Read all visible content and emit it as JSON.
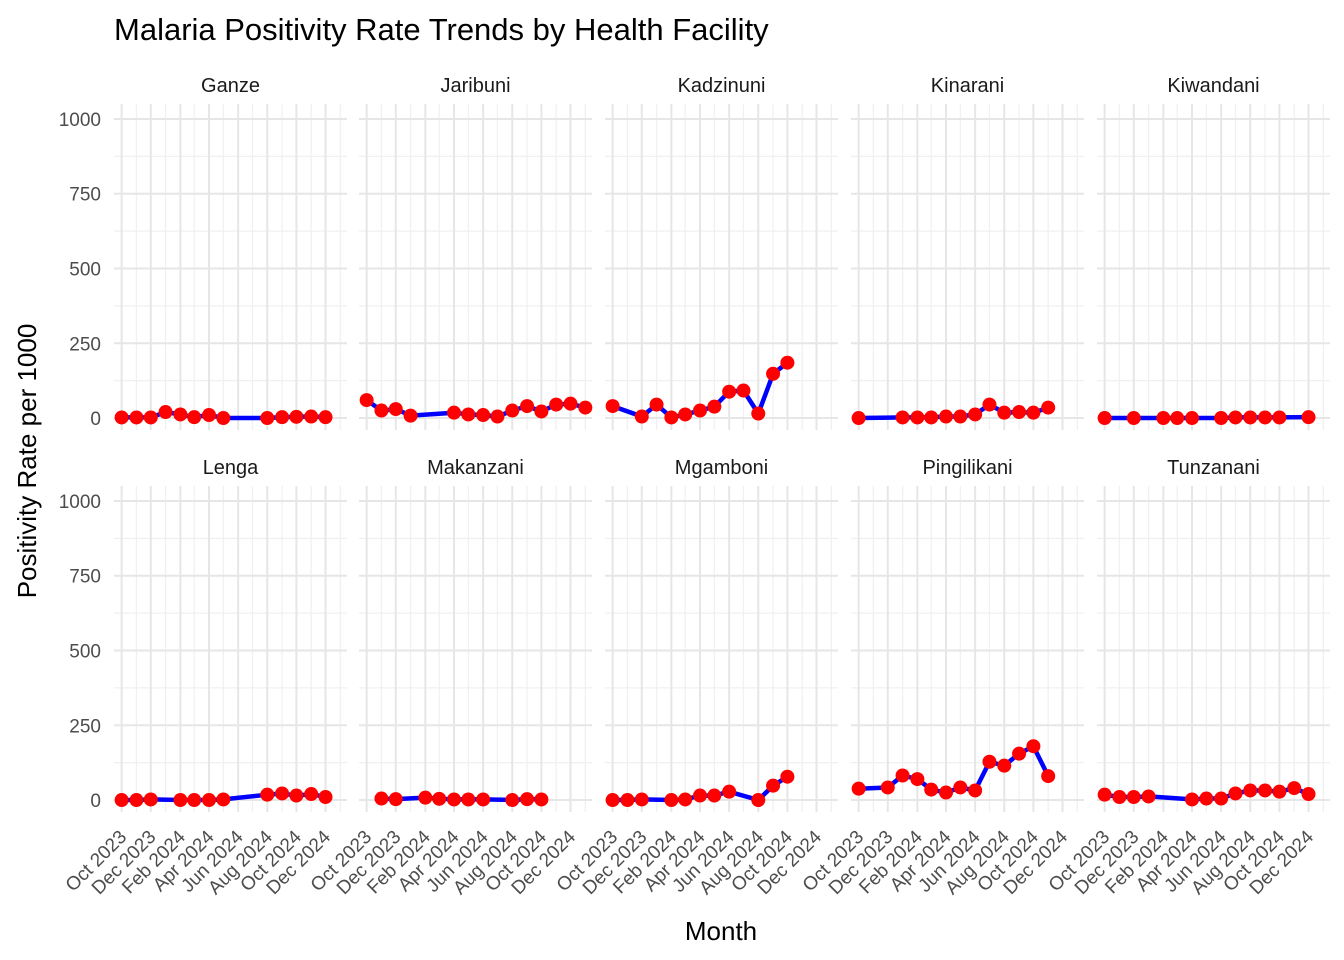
{
  "chart_data": {
    "type": "line",
    "title": "Malaria Positivity Rate Trends by Health Facility",
    "xlabel": "Month",
    "ylabel": "Positivity Rate per 1000",
    "ylim": [
      -40,
      1050
    ],
    "y_ticks": [
      0,
      250,
      500,
      750,
      1000
    ],
    "y_tick_labels": [
      "0",
      "250",
      "500",
      "750",
      "1000"
    ],
    "x_range": [
      "2023-09-15",
      "2025-01-15"
    ],
    "x_ticks": [
      "2023-10-01",
      "2023-12-01",
      "2024-02-01",
      "2024-04-01",
      "2024-06-01",
      "2024-08-01",
      "2024-10-01",
      "2024-12-01"
    ],
    "x_tick_labels": [
      "Oct 2023",
      "Dec 2023",
      "Feb 2024",
      "Apr 2024",
      "Jun 2024",
      "Aug 2024",
      "Oct 2024",
      "Dec 2024"
    ],
    "grid": true,
    "facet_layout": "2 rows x 5 columns",
    "line_color": "#0000FF",
    "point_color": "#FF0000",
    "panels": [
      {
        "name": "Ganze",
        "points": [
          [
            "2023-10",
            2
          ],
          [
            "2023-11",
            2
          ],
          [
            "2023-12",
            2
          ],
          [
            "2024-01",
            20
          ],
          [
            "2024-02",
            12
          ],
          [
            "2024-03",
            3
          ],
          [
            "2024-04",
            10
          ],
          [
            "2024-05",
            0
          ],
          [
            "2024-08",
            0
          ],
          [
            "2024-09",
            3
          ],
          [
            "2024-10",
            4
          ],
          [
            "2024-11",
            5
          ],
          [
            "2024-12",
            3
          ]
        ]
      },
      {
        "name": "Jaribuni",
        "points": [
          [
            "2023-10",
            60
          ],
          [
            "2023-11",
            25
          ],
          [
            "2023-12",
            30
          ],
          [
            "2024-01",
            8
          ],
          [
            "2024-04",
            18
          ],
          [
            "2024-05",
            12
          ],
          [
            "2024-06",
            10
          ],
          [
            "2024-07",
            5
          ],
          [
            "2024-08",
            25
          ],
          [
            "2024-09",
            40
          ],
          [
            "2024-10",
            22
          ],
          [
            "2024-11",
            45
          ],
          [
            "2024-12",
            48
          ],
          [
            "2025-01",
            35
          ]
        ]
      },
      {
        "name": "Kadzinuni",
        "points": [
          [
            "2023-10",
            40
          ],
          [
            "2023-12",
            5
          ],
          [
            "2024-01",
            45
          ],
          [
            "2024-02",
            2
          ],
          [
            "2024-03",
            12
          ],
          [
            "2024-04",
            25
          ],
          [
            "2024-05",
            38
          ],
          [
            "2024-06",
            88
          ],
          [
            "2024-07",
            92
          ],
          [
            "2024-08",
            15
          ],
          [
            "2024-09",
            148
          ],
          [
            "2024-10",
            185
          ]
        ]
      },
      {
        "name": "Kinarani",
        "points": [
          [
            "2023-10",
            0
          ],
          [
            "2024-01",
            2
          ],
          [
            "2024-02",
            2
          ],
          [
            "2024-03",
            2
          ],
          [
            "2024-04",
            5
          ],
          [
            "2024-05",
            5
          ],
          [
            "2024-06",
            12
          ],
          [
            "2024-07",
            45
          ],
          [
            "2024-08",
            18
          ],
          [
            "2024-09",
            20
          ],
          [
            "2024-10",
            18
          ],
          [
            "2024-11",
            35
          ]
        ]
      },
      {
        "name": "Kiwandani",
        "points": [
          [
            "2023-10",
            0
          ],
          [
            "2023-12",
            0
          ],
          [
            "2024-02",
            0
          ],
          [
            "2024-03",
            0
          ],
          [
            "2024-04",
            0
          ],
          [
            "2024-06",
            0
          ],
          [
            "2024-07",
            2
          ],
          [
            "2024-08",
            2
          ],
          [
            "2024-09",
            2
          ],
          [
            "2024-10",
            2
          ],
          [
            "2024-12",
            3
          ]
        ]
      },
      {
        "name": "Lenga",
        "points": [
          [
            "2023-10",
            0
          ],
          [
            "2023-11",
            0
          ],
          [
            "2023-12",
            2
          ],
          [
            "2024-02",
            0
          ],
          [
            "2024-03",
            0
          ],
          [
            "2024-04",
            0
          ],
          [
            "2024-05",
            2
          ],
          [
            "2024-08",
            18
          ],
          [
            "2024-09",
            22
          ],
          [
            "2024-10",
            15
          ],
          [
            "2024-11",
            20
          ],
          [
            "2024-12",
            10
          ]
        ]
      },
      {
        "name": "Makanzani",
        "points": [
          [
            "2023-11",
            5
          ],
          [
            "2023-12",
            3
          ],
          [
            "2024-02",
            8
          ],
          [
            "2024-03",
            4
          ],
          [
            "2024-04",
            2
          ],
          [
            "2024-05",
            2
          ],
          [
            "2024-06",
            2
          ],
          [
            "2024-08",
            0
          ],
          [
            "2024-09",
            3
          ],
          [
            "2024-10",
            2
          ]
        ]
      },
      {
        "name": "Mgamboni",
        "points": [
          [
            "2023-10",
            0
          ],
          [
            "2023-11",
            0
          ],
          [
            "2023-12",
            2
          ],
          [
            "2024-02",
            0
          ],
          [
            "2024-03",
            2
          ],
          [
            "2024-04",
            15
          ],
          [
            "2024-05",
            15
          ],
          [
            "2024-06",
            28
          ],
          [
            "2024-08",
            0
          ],
          [
            "2024-09",
            48
          ],
          [
            "2024-10",
            78
          ]
        ]
      },
      {
        "name": "Pingilikani",
        "points": [
          [
            "2023-10",
            38
          ],
          [
            "2023-12",
            42
          ],
          [
            "2024-01",
            82
          ],
          [
            "2024-02",
            70
          ],
          [
            "2024-03",
            35
          ],
          [
            "2024-04",
            25
          ],
          [
            "2024-05",
            42
          ],
          [
            "2024-06",
            32
          ],
          [
            "2024-07",
            128
          ],
          [
            "2024-08",
            115
          ],
          [
            "2024-09",
            155
          ],
          [
            "2024-10",
            180
          ],
          [
            "2024-11",
            80
          ]
        ]
      },
      {
        "name": "Tunzanani",
        "points": [
          [
            "2023-10",
            18
          ],
          [
            "2023-11",
            10
          ],
          [
            "2023-12",
            10
          ],
          [
            "2024-01",
            12
          ],
          [
            "2024-04",
            2
          ],
          [
            "2024-05",
            5
          ],
          [
            "2024-06",
            5
          ],
          [
            "2024-07",
            22
          ],
          [
            "2024-08",
            32
          ],
          [
            "2024-09",
            32
          ],
          [
            "2024-10",
            28
          ],
          [
            "2024-11",
            40
          ],
          [
            "2024-12",
            20
          ]
        ]
      }
    ]
  }
}
